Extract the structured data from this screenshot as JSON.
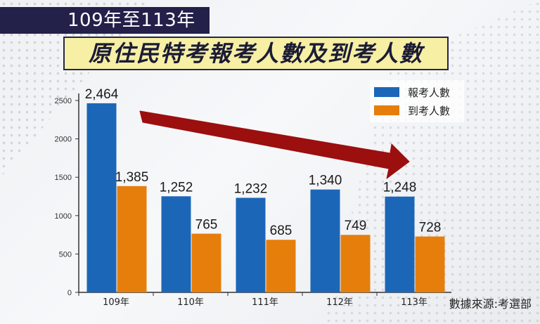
{
  "header": {
    "years": "109年至113年",
    "title": "原住民特考報考人數及到考人數"
  },
  "source": "數據來源:考選部",
  "colors": {
    "registered": "#1c66b8",
    "attended": "#e67e0b",
    "arrow": "#9c0f0f"
  },
  "chart_data": {
    "type": "bar",
    "categories": [
      "109年",
      "110年",
      "111年",
      "112年",
      "113年"
    ],
    "series": [
      {
        "name": "報考人數",
        "values": [
          2464,
          1252,
          1232,
          1340,
          1248
        ],
        "labels": [
          "2,464",
          "1,252",
          "1,232",
          "1,340",
          "1,248"
        ]
      },
      {
        "name": "到考人數",
        "values": [
          1385,
          765,
          685,
          749,
          728
        ],
        "labels": [
          "1,385",
          "765",
          "685",
          "749",
          "728"
        ]
      }
    ],
    "ylim": [
      0,
      2500
    ],
    "yticks": [
      0,
      500,
      1000,
      1500,
      2000,
      2500
    ],
    "legend": "top-right",
    "annotation": "downward-trend-arrow"
  }
}
